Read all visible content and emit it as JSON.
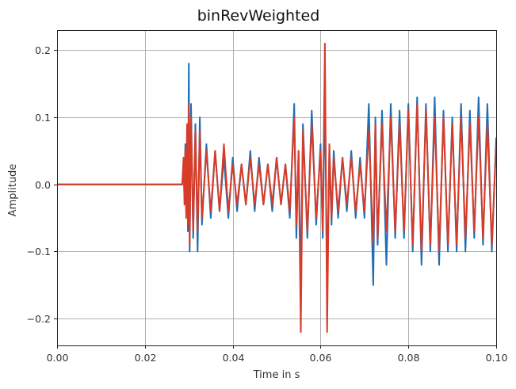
{
  "chart_data": {
    "type": "line",
    "title": "binRevWeighted",
    "xlabel": "Time in s",
    "ylabel": "Amplitude",
    "xlim": [
      0.0,
      0.1
    ],
    "ylim": [
      -0.24,
      0.23
    ],
    "grid": true,
    "x_ticks": [
      {
        "value": 0.0,
        "label": "0.00"
      },
      {
        "value": 0.02,
        "label": "0.02"
      },
      {
        "value": 0.04,
        "label": "0.04"
      },
      {
        "value": 0.06,
        "label": "0.06"
      },
      {
        "value": 0.08,
        "label": "0.08"
      },
      {
        "value": 0.1,
        "label": "0.10"
      }
    ],
    "y_ticks": [
      {
        "value": -0.2,
        "label": "−0.2"
      },
      {
        "value": -0.1,
        "label": "−0.1"
      },
      {
        "value": 0.0,
        "label": "0.0"
      },
      {
        "value": 0.1,
        "label": "0.1"
      },
      {
        "value": 0.2,
        "label": "0.2"
      }
    ],
    "series": [
      {
        "color": "#1f6eb5",
        "x": [
          0.0,
          0.0285,
          0.0288,
          0.029,
          0.0292,
          0.0294,
          0.0296,
          0.0298,
          0.03,
          0.0302,
          0.0305,
          0.031,
          0.0315,
          0.032,
          0.0325,
          0.033,
          0.034,
          0.035,
          0.036,
          0.037,
          0.038,
          0.039,
          0.04,
          0.041,
          0.042,
          0.043,
          0.044,
          0.045,
          0.046,
          0.047,
          0.048,
          0.049,
          0.05,
          0.051,
          0.052,
          0.053,
          0.054,
          0.0545,
          0.055,
          0.0555,
          0.056,
          0.057,
          0.058,
          0.059,
          0.06,
          0.0605,
          0.061,
          0.0615,
          0.062,
          0.0625,
          0.063,
          0.064,
          0.065,
          0.066,
          0.067,
          0.068,
          0.069,
          0.07,
          0.071,
          0.072,
          0.0725,
          0.073,
          0.074,
          0.075,
          0.076,
          0.077,
          0.078,
          0.079,
          0.08,
          0.081,
          0.082,
          0.083,
          0.084,
          0.085,
          0.086,
          0.087,
          0.088,
          0.089,
          0.09,
          0.091,
          0.092,
          0.093,
          0.094,
          0.095,
          0.096,
          0.097,
          0.098,
          0.099,
          0.1
        ],
        "y": [
          0.0,
          0.0,
          0.03,
          -0.02,
          0.06,
          -0.04,
          0.08,
          -0.07,
          0.18,
          -0.1,
          0.12,
          -0.08,
          0.09,
          -0.1,
          0.1,
          -0.06,
          0.06,
          -0.05,
          0.05,
          -0.04,
          0.04,
          -0.05,
          0.04,
          -0.04,
          0.03,
          -0.03,
          0.05,
          -0.04,
          0.04,
          -0.03,
          0.03,
          -0.04,
          0.04,
          -0.03,
          0.03,
          -0.05,
          0.12,
          -0.08,
          0.05,
          -0.15,
          0.09,
          -0.08,
          0.11,
          -0.06,
          0.06,
          -0.08,
          0.14,
          -0.15,
          0.05,
          -0.06,
          0.05,
          -0.05,
          0.04,
          -0.04,
          0.05,
          -0.05,
          0.04,
          -0.05,
          0.12,
          -0.15,
          0.1,
          -0.09,
          0.11,
          -0.12,
          0.12,
          -0.08,
          0.11,
          -0.08,
          0.12,
          -0.1,
          0.13,
          -0.12,
          0.12,
          -0.1,
          0.13,
          -0.12,
          0.11,
          -0.1,
          0.1,
          -0.1,
          0.12,
          -0.1,
          0.11,
          -0.08,
          0.13,
          -0.09,
          0.12,
          -0.1,
          0.07
        ]
      },
      {
        "color": "#d83b27",
        "x": [
          0.0,
          0.0285,
          0.0288,
          0.029,
          0.0292,
          0.0294,
          0.0296,
          0.0298,
          0.03,
          0.0302,
          0.0305,
          0.031,
          0.0315,
          0.032,
          0.0325,
          0.033,
          0.034,
          0.035,
          0.036,
          0.037,
          0.038,
          0.039,
          0.04,
          0.041,
          0.042,
          0.043,
          0.044,
          0.045,
          0.046,
          0.047,
          0.048,
          0.049,
          0.05,
          0.051,
          0.052,
          0.053,
          0.054,
          0.0545,
          0.055,
          0.0555,
          0.056,
          0.057,
          0.058,
          0.059,
          0.06,
          0.0605,
          0.061,
          0.0615,
          0.062,
          0.0625,
          0.063,
          0.064,
          0.065,
          0.066,
          0.067,
          0.068,
          0.069,
          0.07,
          0.071,
          0.072,
          0.0725,
          0.073,
          0.074,
          0.075,
          0.076,
          0.077,
          0.078,
          0.079,
          0.08,
          0.081,
          0.082,
          0.083,
          0.084,
          0.085,
          0.086,
          0.087,
          0.088,
          0.089,
          0.09,
          0.091,
          0.092,
          0.093,
          0.094,
          0.095,
          0.096,
          0.097,
          0.098,
          0.099,
          0.1
        ],
        "y": [
          0.0,
          0.0,
          0.04,
          -0.03,
          0.05,
          -0.05,
          0.09,
          -0.06,
          0.12,
          -0.09,
          0.1,
          -0.07,
          0.08,
          -0.07,
          0.08,
          -0.05,
          0.05,
          -0.04,
          0.05,
          -0.04,
          0.06,
          -0.04,
          0.03,
          -0.03,
          0.03,
          -0.03,
          0.04,
          -0.03,
          0.03,
          -0.03,
          0.03,
          -0.03,
          0.04,
          -0.03,
          0.03,
          -0.04,
          0.1,
          -0.06,
          0.05,
          -0.22,
          0.08,
          -0.07,
          0.09,
          -0.05,
          0.05,
          -0.07,
          0.21,
          -0.22,
          0.06,
          -0.05,
          0.04,
          -0.04,
          0.04,
          -0.03,
          0.04,
          -0.04,
          0.03,
          -0.04,
          0.08,
          -0.09,
          0.09,
          -0.08,
          0.09,
          -0.07,
          0.1,
          -0.07,
          0.09,
          -0.07,
          0.11,
          -0.09,
          0.12,
          -0.1,
          0.11,
          -0.09,
          0.1,
          -0.1,
          0.1,
          -0.09,
          0.09,
          -0.09,
          0.1,
          -0.08,
          0.09,
          -0.07,
          0.1,
          -0.08,
          0.09,
          -0.09,
          0.06
        ]
      }
    ]
  }
}
